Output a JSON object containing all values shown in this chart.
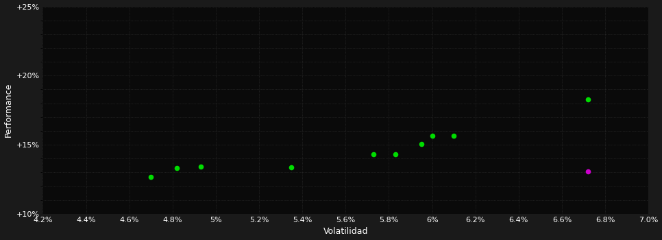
{
  "background_color": "#1a1a1a",
  "plot_bg_color": "#0a0a0a",
  "grid_color": "#333333",
  "xlabel": "Volatilidad",
  "ylabel": "Performance",
  "xlim": [
    0.042,
    0.07
  ],
  "ylim": [
    0.1,
    0.25
  ],
  "xticks": [
    0.042,
    0.044,
    0.046,
    0.048,
    0.05,
    0.052,
    0.054,
    0.056,
    0.058,
    0.06,
    0.062,
    0.064,
    0.066,
    0.068,
    0.07
  ],
  "yticks": [
    0.1,
    0.15,
    0.2,
    0.25
  ],
  "ytick_labels": [
    "+10%",
    "+15%",
    "+20%",
    "+25%"
  ],
  "green_points": [
    [
      0.047,
      0.1265
    ],
    [
      0.0482,
      0.133
    ],
    [
      0.0493,
      0.134
    ],
    [
      0.0535,
      0.1335
    ],
    [
      0.0573,
      0.143
    ],
    [
      0.0583,
      0.143
    ],
    [
      0.0595,
      0.1505
    ],
    [
      0.06,
      0.1565
    ],
    [
      0.061,
      0.1565
    ],
    [
      0.0672,
      0.183
    ]
  ],
  "magenta_points": [
    [
      0.0672,
      0.1305
    ]
  ],
  "green_color": "#00dd00",
  "magenta_color": "#cc00cc",
  "marker_size": 30,
  "tick_color": "#ffffff",
  "label_color": "#ffffff",
  "tick_fontsize": 8,
  "label_fontsize": 9
}
